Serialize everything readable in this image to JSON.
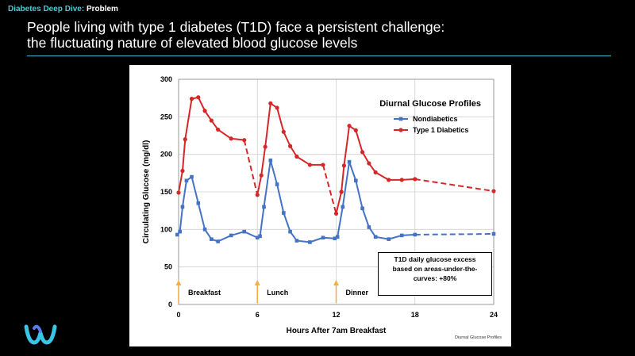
{
  "header": {
    "brand": "Diabetes Deep Dive:",
    "section": "Problem"
  },
  "slide": {
    "title_line1": "People living with type 1 diabetes (T1D) face a persistent challenge:",
    "title_line2": "the fluctuating nature of elevated blood glucose levels"
  },
  "colors": {
    "accent": "#3fd0d6",
    "rule": "#3fb6c6",
    "nondiabetic": "#4472c4",
    "t1d": "#d62728",
    "meal_arrow": "#f5b041"
  },
  "chart_data": {
    "type": "line",
    "title": "Diurnal Glucose Profiles",
    "xlabel": "Hours After 7am Breakfast",
    "ylabel": "Circulating Glucose (mg/dl)",
    "xlim": [
      0,
      24
    ],
    "ylim": [
      0,
      300
    ],
    "xticks": [
      0,
      6,
      12,
      18,
      24
    ],
    "yticks": [
      0,
      50,
      100,
      150,
      200,
      250,
      300
    ],
    "grid": true,
    "legend_position": "top-right",
    "series": [
      {
        "name": "Nondiabetics",
        "color": "#4472c4",
        "points": [
          [
            -0.1,
            93
          ],
          [
            0.1,
            97
          ],
          [
            0.3,
            130
          ],
          [
            0.6,
            165
          ],
          [
            1.0,
            170
          ],
          [
            1.5,
            135
          ],
          [
            2.0,
            100
          ],
          [
            2.5,
            87
          ],
          [
            3.0,
            84
          ],
          [
            4.0,
            92
          ],
          [
            5.0,
            97
          ],
          [
            6.0,
            89
          ],
          [
            6.2,
            91
          ],
          [
            6.5,
            130
          ],
          [
            7.0,
            192
          ],
          [
            7.5,
            160
          ],
          [
            8.0,
            122
          ],
          [
            8.5,
            97
          ],
          [
            9.0,
            85
          ],
          [
            10.0,
            83
          ],
          [
            11.0,
            89
          ],
          [
            11.9,
            88
          ],
          [
            12.1,
            90
          ],
          [
            12.5,
            130
          ],
          [
            13.0,
            190
          ],
          [
            13.5,
            165
          ],
          [
            14.0,
            128
          ],
          [
            14.5,
            103
          ],
          [
            15.0,
            90
          ],
          [
            16.0,
            87
          ],
          [
            17.0,
            92
          ],
          [
            18.0,
            93
          ]
        ],
        "dashed_points": [
          [
            18.0,
            93
          ],
          [
            24.0,
            94
          ]
        ]
      },
      {
        "name": "Type 1 Diabetics",
        "color": "#d62728",
        "points": [
          [
            0.0,
            149
          ],
          [
            0.3,
            178
          ],
          [
            0.5,
            220
          ],
          [
            1.0,
            274
          ],
          [
            1.5,
            276
          ],
          [
            2.0,
            258
          ],
          [
            2.5,
            245
          ],
          [
            3.0,
            233
          ],
          [
            4.0,
            221
          ],
          [
            5.0,
            219
          ]
        ],
        "dashed_points": [
          [
            5.0,
            219
          ],
          [
            6.0,
            146
          ]
        ],
        "points_2": [
          [
            6.0,
            146
          ],
          [
            6.3,
            172
          ],
          [
            6.6,
            210
          ],
          [
            7.0,
            268
          ],
          [
            7.5,
            262
          ],
          [
            8.0,
            230
          ],
          [
            8.5,
            211
          ],
          [
            9.0,
            197
          ],
          [
            10.0,
            186
          ],
          [
            11.0,
            186
          ]
        ],
        "dashed_points_2": [
          [
            11.0,
            186
          ],
          [
            12.0,
            121
          ]
        ],
        "points_3": [
          [
            12.0,
            121
          ],
          [
            12.4,
            150
          ],
          [
            12.6,
            185
          ],
          [
            13.0,
            238
          ],
          [
            13.5,
            232
          ],
          [
            14.0,
            203
          ],
          [
            14.5,
            188
          ],
          [
            15.0,
            176
          ],
          [
            16.0,
            166
          ],
          [
            17.0,
            166
          ],
          [
            18.0,
            167
          ]
        ],
        "dashed_points_3": [
          [
            18.0,
            167
          ],
          [
            24.0,
            151
          ]
        ]
      }
    ],
    "meal_markers": [
      {
        "x": 0,
        "label": "Breakfast"
      },
      {
        "x": 6,
        "label": "Lunch"
      },
      {
        "x": 12,
        "label": "Dinner"
      }
    ],
    "annotation": "T1D daily glucose excess based on areas-under-the-curves: +80%",
    "source": "Diurnal Glucose Profiles"
  },
  "note_lines": [
    "T1D daily glucose excess",
    "based on areas-under-the-",
    "curves:  +80%"
  ]
}
